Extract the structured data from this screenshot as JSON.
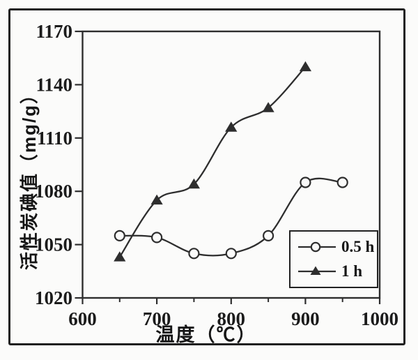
{
  "figure": {
    "background": "#fbfbfa",
    "frame_color": "#1f1f1f",
    "ink_color": "#2e2e2e",
    "text_color": "#1b1b1b"
  },
  "chart_data": {
    "type": "line",
    "title": "",
    "xlabel": "温度（℃）",
    "ylabel": "活性炭碘值（mg/g）",
    "xlim": [
      600,
      1000
    ],
    "ylim": [
      1020,
      1170
    ],
    "x_major_ticks": [
      600,
      700,
      800,
      900,
      1000
    ],
    "x_minor_ticks": [
      650,
      750,
      850,
      950
    ],
    "y_ticks": [
      1020,
      1050,
      1080,
      1110,
      1140,
      1170
    ],
    "grid": false,
    "legend_position": "inside lower-right",
    "series": [
      {
        "name": "0.5 h",
        "marker": "circle-open",
        "x": [
          650,
          700,
          750,
          800,
          850,
          900,
          950
        ],
        "y": [
          1055,
          1054,
          1045,
          1045,
          1055,
          1085,
          1085
        ]
      },
      {
        "name": "1 h",
        "marker": "triangle-filled",
        "x": [
          650,
          700,
          750,
          800,
          850,
          900
        ],
        "y": [
          1043,
          1075,
          1084,
          1116,
          1127,
          1150
        ]
      }
    ]
  }
}
